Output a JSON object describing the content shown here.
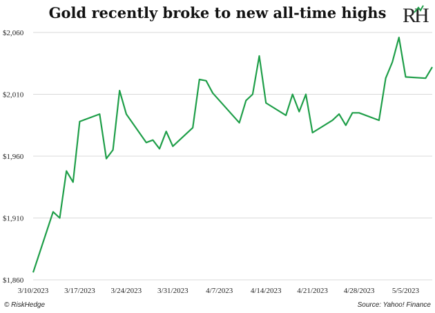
{
  "chart_data": {
    "type": "line",
    "title": "Gold recently broke to new all-time highs",
    "xlabel": "",
    "ylabel": "",
    "x_tick_labels": [
      "3/10/2023",
      "3/17/2023",
      "3/24/2023",
      "3/31/2023",
      "4/7/2023",
      "4/14/2023",
      "4/21/2023",
      "4/28/2023",
      "5/5/2023"
    ],
    "y_tick_labels": [
      "$1,860",
      "$1,910",
      "$1,960",
      "$2,010",
      "$2,060"
    ],
    "ylim": [
      1860,
      2060
    ],
    "xlim": [
      "2023-03-10",
      "2023-05-09"
    ],
    "grid": "horizontal",
    "legend": "none",
    "series": [
      {
        "color": "#1e9e48",
        "x": [
          "2023-03-10",
          "2023-03-13",
          "2023-03-14",
          "2023-03-15",
          "2023-03-16",
          "2023-03-17",
          "2023-03-20",
          "2023-03-21",
          "2023-03-22",
          "2023-03-23",
          "2023-03-24",
          "2023-03-27",
          "2023-03-28",
          "2023-03-29",
          "2023-03-30",
          "2023-03-31",
          "2023-04-03",
          "2023-04-04",
          "2023-04-05",
          "2023-04-06",
          "2023-04-10",
          "2023-04-11",
          "2023-04-12",
          "2023-04-13",
          "2023-04-14",
          "2023-04-17",
          "2023-04-18",
          "2023-04-19",
          "2023-04-20",
          "2023-04-21",
          "2023-04-24",
          "2023-04-25",
          "2023-04-26",
          "2023-04-27",
          "2023-04-28",
          "2023-05-01",
          "2023-05-02",
          "2023-05-03",
          "2023-05-04",
          "2023-05-05",
          "2023-05-08",
          "2023-05-09"
        ],
        "values": [
          1866,
          1915,
          1910,
          1948,
          1939,
          1988,
          1994,
          1958,
          1965,
          2013,
          1994,
          1971,
          1973,
          1966,
          1980,
          1968,
          1983,
          2022,
          2021,
          2011,
          1987,
          2005,
          2010,
          2041,
          2003,
          1993,
          2010,
          1996,
          2010,
          1979,
          1989,
          1994,
          1985,
          1995,
          1995,
          1989,
          2023,
          2036,
          2056,
          2024,
          2023,
          2032
        ]
      }
    ]
  },
  "footer": {
    "copyright": "© RiskHedge",
    "source": "Source: Yahoo! Finance"
  }
}
